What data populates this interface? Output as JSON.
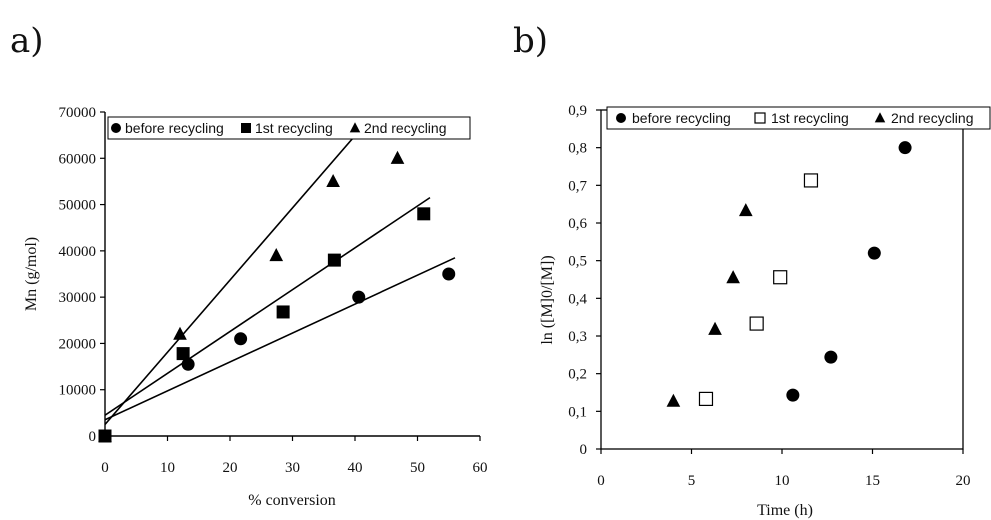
{
  "figure": {
    "panels": [
      {
        "letter": "a)"
      },
      {
        "letter": "b)"
      }
    ]
  },
  "chart_data": [
    {
      "type": "scatter",
      "title": "",
      "xlabel": "% conversion",
      "ylabel": "Mn (g/mol)",
      "xlim": [
        0,
        60
      ],
      "ylim": [
        0,
        70000
      ],
      "xticks": [
        "0",
        "10",
        "20",
        "30",
        "40",
        "50",
        "60"
      ],
      "yticks": [
        "0",
        "10000",
        "20000",
        "30000",
        "40000",
        "50000",
        "60000",
        "70000"
      ],
      "grid": false,
      "legend_position": "top",
      "series": [
        {
          "name": "before recycling",
          "marker": "circle",
          "color": "#000000",
          "x": [
            0,
            13.3,
            21.7,
            40.6,
            55.0
          ],
          "y": [
            0,
            15500,
            21000,
            30000,
            35000
          ],
          "fit_line": {
            "from": [
              0,
              3500
            ],
            "to": [
              56,
              38500
            ]
          }
        },
        {
          "name": "1st recycling",
          "marker": "square",
          "color": "#000000",
          "x": [
            0,
            12.5,
            28.5,
            36.7,
            51.0
          ],
          "y": [
            0,
            17800,
            26800,
            38000,
            48000
          ],
          "fit_line": {
            "from": [
              0,
              4500
            ],
            "to": [
              52,
              51500
            ]
          }
        },
        {
          "name": "2nd recycling",
          "marker": "triangle",
          "color": "#000000",
          "x": [
            0,
            12.0,
            27.4,
            36.5,
            46.8
          ],
          "y": [
            0,
            22000,
            39000,
            55000,
            60000
          ],
          "fit_line": {
            "from": [
              0,
              2500
            ],
            "to": [
              42,
              68000
            ]
          }
        }
      ]
    },
    {
      "type": "scatter",
      "title": "",
      "xlabel": "Time (h)",
      "ylabel": "ln ([M]0/[M])",
      "xlim": [
        0,
        20
      ],
      "ylim": [
        0,
        0.9
      ],
      "xticks": [
        "0",
        "5",
        "10",
        "15",
        "20"
      ],
      "yticks": [
        "0",
        "0,1",
        "0,2",
        "0,3",
        "0,4",
        "0,5",
        "0,6",
        "0,7",
        "0,8",
        "0,9"
      ],
      "grid": false,
      "legend_position": "top",
      "series": [
        {
          "name": "before recycling",
          "marker": "circle",
          "color": "#000000",
          "x": [
            10.6,
            12.7,
            15.1,
            16.8
          ],
          "y": [
            0.143,
            0.244,
            0.52,
            0.8
          ]
        },
        {
          "name": "1st recycling",
          "marker": "open-square",
          "color": "#000000",
          "x": [
            5.8,
            8.6,
            9.9,
            11.6
          ],
          "y": [
            0.133,
            0.333,
            0.456,
            0.713
          ]
        },
        {
          "name": "2nd recycling",
          "marker": "triangle",
          "color": "#000000",
          "x": [
            4.0,
            6.3,
            7.3,
            8.0
          ],
          "y": [
            0.127,
            0.318,
            0.455,
            0.633
          ]
        }
      ]
    }
  ]
}
